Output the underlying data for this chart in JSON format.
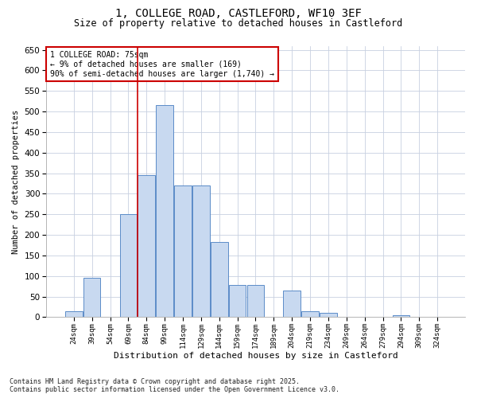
{
  "title_line1": "1, COLLEGE ROAD, CASTLEFORD, WF10 3EF",
  "title_line2": "Size of property relative to detached houses in Castleford",
  "xlabel": "Distribution of detached houses by size in Castleford",
  "ylabel": "Number of detached properties",
  "footnote_line1": "Contains HM Land Registry data © Crown copyright and database right 2025.",
  "footnote_line2": "Contains public sector information licensed under the Open Government Licence v3.0.",
  "annotation_line1": "1 COLLEGE ROAD: 75sqm",
  "annotation_line2": "← 9% of detached houses are smaller (169)",
  "annotation_line3": "90% of semi-detached houses are larger (1,740) →",
  "bar_color": "#c8d9f0",
  "bar_edge_color": "#5b8cc8",
  "grid_color": "#c8d0e0",
  "vline_color": "#cc0000",
  "annotation_box_color": "#cc0000",
  "bins": [
    "24sqm",
    "39sqm",
    "54sqm",
    "69sqm",
    "84sqm",
    "99sqm",
    "114sqm",
    "129sqm",
    "144sqm",
    "159sqm",
    "174sqm",
    "189sqm",
    "204sqm",
    "219sqm",
    "234sqm",
    "249sqm",
    "264sqm",
    "279sqm",
    "294sqm",
    "309sqm",
    "324sqm"
  ],
  "values": [
    15,
    95,
    0,
    250,
    345,
    515,
    320,
    320,
    183,
    78,
    78,
    0,
    65,
    15,
    10,
    0,
    0,
    0,
    5,
    0,
    0
  ],
  "ylim": [
    0,
    660
  ],
  "yticks": [
    0,
    50,
    100,
    150,
    200,
    250,
    300,
    350,
    400,
    450,
    500,
    550,
    600,
    650
  ],
  "vline_x": 3.5,
  "figsize": [
    6.0,
    5.0
  ],
  "dpi": 100
}
